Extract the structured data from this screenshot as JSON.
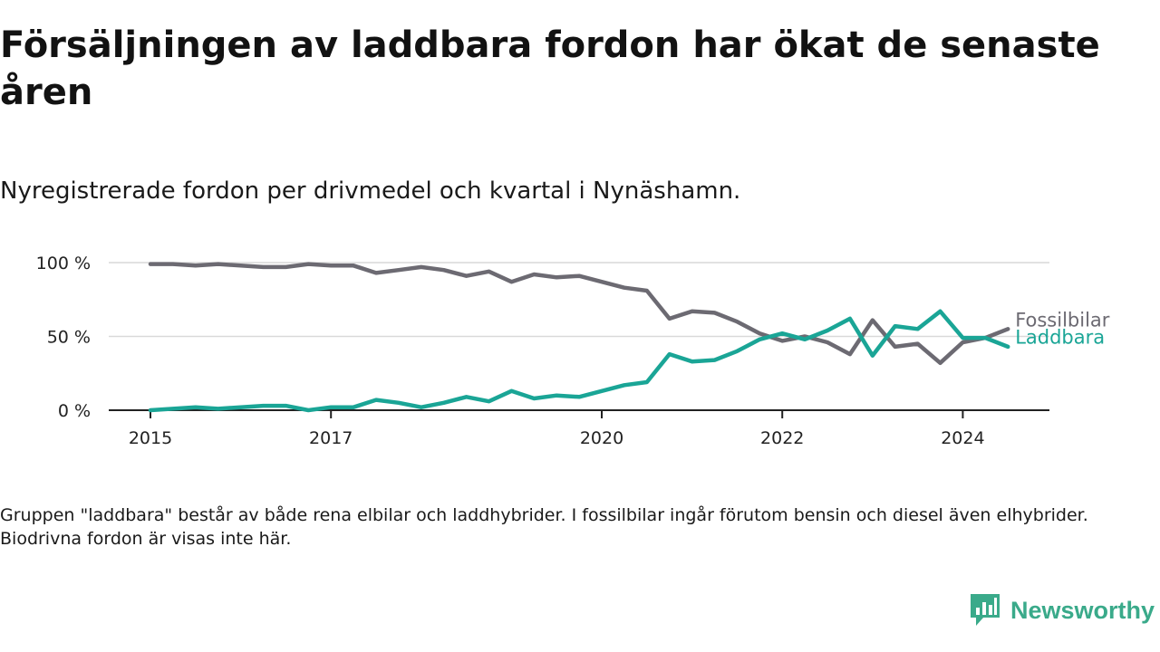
{
  "header": {
    "title": "Försäljningen av laddbara fordon har ökat de senaste åren",
    "subtitle": "Nyregistrerade fordon per drivmedel och kvartal i Nynäshamn."
  },
  "footer": {
    "note": "Gruppen \"laddbara\" består av både rena elbilar och laddhybrider. I fossilbilar ingår förutom bensin och diesel även elhybrider. Biodrivna fordon är visas inte här."
  },
  "brand": {
    "name": "Newsworthy",
    "color": "#3aaa8a",
    "icon": "newsworthy-logo-icon"
  },
  "chart_data": {
    "type": "line",
    "title": "Försäljningen av laddbara fordon har ökat de senaste åren",
    "subtitle": "Nyregistrerade fordon per drivmedel och kvartal i Nynäshamn.",
    "xlabel": "",
    "ylabel": "",
    "x_start": 2015.0,
    "x_step": 0.25,
    "xlim": [
      2015.0,
      2024.5
    ],
    "ylim": [
      0,
      100
    ],
    "grid": true,
    "x_ticks": [
      {
        "value": 2015,
        "label": "2015"
      },
      {
        "value": 2017,
        "label": "2017"
      },
      {
        "value": 2020,
        "label": "2020"
      },
      {
        "value": 2022,
        "label": "2022"
      },
      {
        "value": 2024,
        "label": "2024"
      }
    ],
    "y_ticks": [
      {
        "value": 0,
        "label": "0 %"
      },
      {
        "value": 50,
        "label": "50 %"
      },
      {
        "value": 100,
        "label": "100 %"
      }
    ],
    "series": [
      {
        "name": "Fossilbilar",
        "color": "#6c6a72",
        "values": [
          99,
          99,
          98,
          99,
          98,
          97,
          97,
          99,
          98,
          98,
          93,
          95,
          97,
          95,
          91,
          94,
          87,
          92,
          90,
          91,
          87,
          83,
          81,
          62,
          67,
          66,
          60,
          52,
          47,
          50,
          46,
          38,
          61,
          43,
          45,
          32,
          46,
          49,
          55
        ]
      },
      {
        "name": "Laddbara",
        "color": "#1aa596",
        "values": [
          0,
          1,
          2,
          1,
          2,
          3,
          3,
          0,
          2,
          2,
          7,
          5,
          2,
          5,
          9,
          6,
          13,
          8,
          10,
          9,
          13,
          17,
          19,
          38,
          33,
          34,
          40,
          48,
          52,
          48,
          54,
          62,
          37,
          57,
          55,
          67,
          49,
          49,
          43
        ]
      }
    ]
  }
}
